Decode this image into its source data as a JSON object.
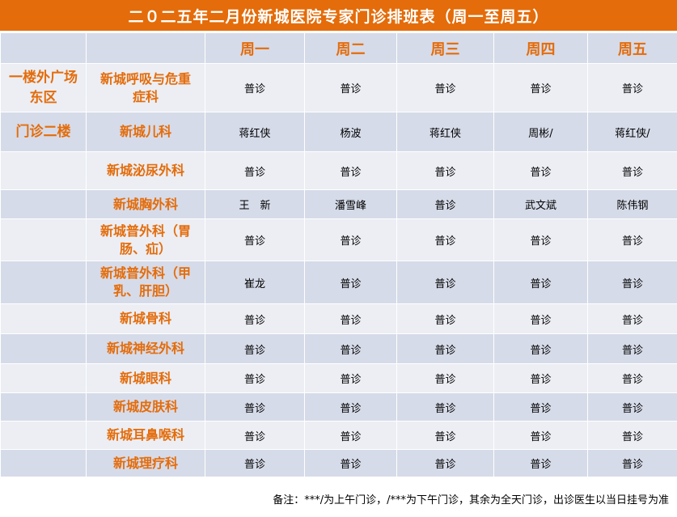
{
  "title": "二０二五年二月份新城医院专家门诊排班表（周一至周五）",
  "days": [
    "周一",
    "周二",
    "周三",
    "周四",
    "周五"
  ],
  "rows": [
    {
      "location": "一楼外广场东区",
      "dept": "新城呼吸与危重症科",
      "cells": [
        "普诊",
        "普诊",
        "普诊",
        "普诊",
        "普诊"
      ]
    },
    {
      "location": "门诊二楼",
      "dept": "新城儿科",
      "cells": [
        "蒋红侠",
        "杨波",
        "蒋红侠",
        "周彬/",
        "蒋红侠/"
      ]
    },
    {
      "location": "",
      "dept": "新城泌尿外科",
      "cells": [
        "普诊",
        "普诊",
        "普诊",
        "普诊",
        "普诊"
      ]
    },
    {
      "location": "",
      "dept": "新城胸外科",
      "cells": [
        "王　新",
        "潘雪峰",
        "普诊",
        "武文斌",
        "陈伟钢"
      ]
    },
    {
      "location": "",
      "dept": "新城普外科（胃肠、疝）",
      "cells": [
        "普诊",
        "普诊",
        "普诊",
        "普诊",
        "普诊"
      ]
    },
    {
      "location": "",
      "dept": "新城普外科（甲乳、肝胆）",
      "cells": [
        "崔龙",
        "普诊",
        "普诊",
        "普诊",
        "普诊"
      ]
    },
    {
      "location": "",
      "dept": "新城骨科",
      "cells": [
        "普诊",
        "普诊",
        "普诊",
        "普诊",
        "普诊"
      ]
    },
    {
      "location": "",
      "dept": "新城神经外科",
      "cells": [
        "普诊",
        "普诊",
        "普诊",
        "普诊",
        "普诊"
      ]
    },
    {
      "location": "",
      "dept": "新城眼科",
      "cells": [
        "普诊",
        "普诊",
        "普诊",
        "普诊",
        "普诊"
      ]
    },
    {
      "location": "",
      "dept": "新城皮肤科",
      "cells": [
        "普诊",
        "普诊",
        "普诊",
        "普诊",
        "普诊"
      ]
    },
    {
      "location": "",
      "dept": "新城耳鼻喉科",
      "cells": [
        "普诊",
        "普诊",
        "普诊",
        "普诊",
        "普诊"
      ]
    },
    {
      "location": "",
      "dept": "新城理疗科",
      "cells": [
        "普诊",
        "普诊",
        "普诊",
        "普诊",
        "普诊"
      ]
    }
  ],
  "note": "备注：***/为上午门诊，/***为下午门诊，其余为全天门诊，出诊医生以当日挂号为准",
  "colors": {
    "accent": "#E46C0A",
    "row_dark": "#D6DBE9",
    "row_light": "#ECEEF4"
  }
}
